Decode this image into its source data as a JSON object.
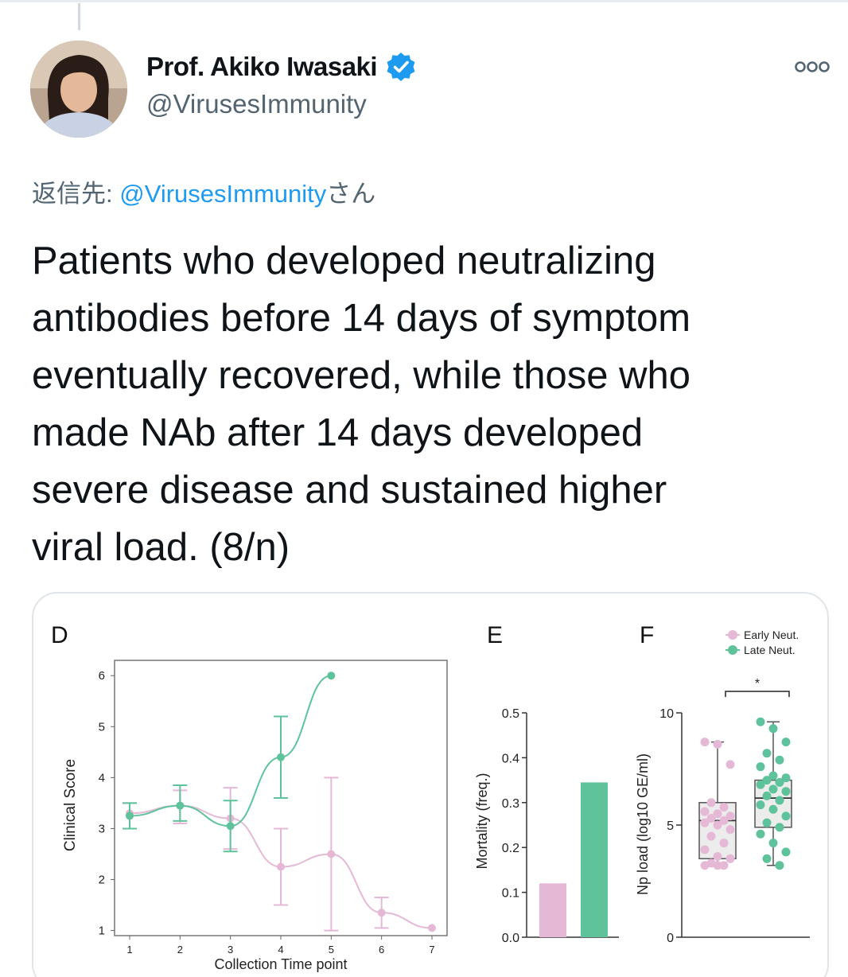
{
  "author": {
    "name": "Prof. Akiko Iwasaki",
    "handle": "@VirusesImmunity"
  },
  "reply_to": {
    "prefix": "返信先: ",
    "mention": "@VirusesImmunity",
    "suffix": "さん"
  },
  "tweet_text": "Patients who developed neutralizing\nantibodies before 14 days of symptom\neventually recovered, while those who\nmade NAb after 14 days developed\nsevere disease and sustained higher\nviral load. (8/n)",
  "colors": {
    "early": "#e5b9d5",
    "late": "#5ec39b",
    "verified": "#1d9bf0"
  },
  "icons": {
    "verified": "verified-badge-icon",
    "more": "more-options-icon"
  },
  "chart_data": [
    {
      "panel": "D",
      "type": "line",
      "xlabel": "Collection Time point",
      "ylabel": "Clinical Score",
      "xlim": [
        0.7,
        7.3
      ],
      "ylim": [
        0.9,
        6.3
      ],
      "x_ticks": [
        1,
        2,
        3,
        4,
        5,
        6,
        7
      ],
      "y_ticks": [
        1,
        2,
        3,
        4,
        5,
        6
      ],
      "series": [
        {
          "color": "#e5b9d5",
          "x": [
            1,
            2,
            3,
            4,
            5,
            6,
            7
          ],
          "y": [
            3.3,
            3.45,
            3.2,
            2.25,
            2.5,
            1.35,
            1.05
          ],
          "err_low": [
            3.0,
            3.1,
            2.6,
            1.5,
            1.0,
            1.05,
            null
          ],
          "err_high": [
            3.5,
            3.75,
            3.8,
            3.0,
            4.0,
            1.65,
            null
          ]
        },
        {
          "color": "#5ec39b",
          "x": [
            1,
            2,
            3,
            4,
            5
          ],
          "y": [
            3.25,
            3.45,
            3.05,
            4.4,
            6.0
          ],
          "err_low": [
            3.0,
            3.15,
            2.55,
            3.6,
            null
          ],
          "err_high": [
            3.5,
            3.85,
            3.55,
            5.2,
            null
          ]
        }
      ]
    },
    {
      "panel": "E",
      "type": "bar",
      "ylabel": "Mortality (freq.)",
      "ylim": [
        0,
        0.5
      ],
      "y_ticks": [
        "0.0",
        "0.1",
        "0.2",
        "0.3",
        "0.4",
        "0.5"
      ],
      "categories": [
        "Early Neut.",
        "Late Neut."
      ],
      "values": [
        0.12,
        0.345
      ]
    },
    {
      "panel": "F",
      "type": "box",
      "ylabel": "Np load (log10 GE/ml)",
      "ylim": [
        0,
        10
      ],
      "y_ticks": [
        "0",
        "5",
        "10"
      ],
      "legend": [
        "Early Neut.",
        "Late Neut."
      ],
      "legend_position": "top-right",
      "significance": "*",
      "groups": [
        {
          "name": "Early Neut.",
          "color": "#e5b9d5",
          "min": 3.2,
          "q1": 3.5,
          "median": 5.2,
          "q3": 6.0,
          "max": 8.7,
          "points": [
            8.7,
            8.6,
            7.7,
            6.0,
            5.8,
            5.6,
            5.5,
            5.4,
            5.3,
            5.2,
            5.1,
            5.0,
            4.8,
            4.5,
            4.2,
            3.9,
            3.6,
            3.5,
            3.3,
            3.2,
            3.2,
            3.2
          ]
        },
        {
          "name": "Late Neut.",
          "color": "#5ec39b",
          "min": 3.2,
          "q1": 4.9,
          "median": 6.2,
          "q3": 7.0,
          "max": 9.6,
          "points": [
            9.6,
            9.3,
            8.7,
            8.2,
            7.9,
            7.6,
            7.2,
            7.1,
            7.0,
            6.9,
            6.8,
            6.6,
            6.5,
            6.3,
            6.1,
            5.9,
            5.7,
            5.4,
            5.1,
            4.9,
            4.6,
            4.2,
            3.8,
            3.5,
            3.2
          ]
        }
      ]
    }
  ]
}
